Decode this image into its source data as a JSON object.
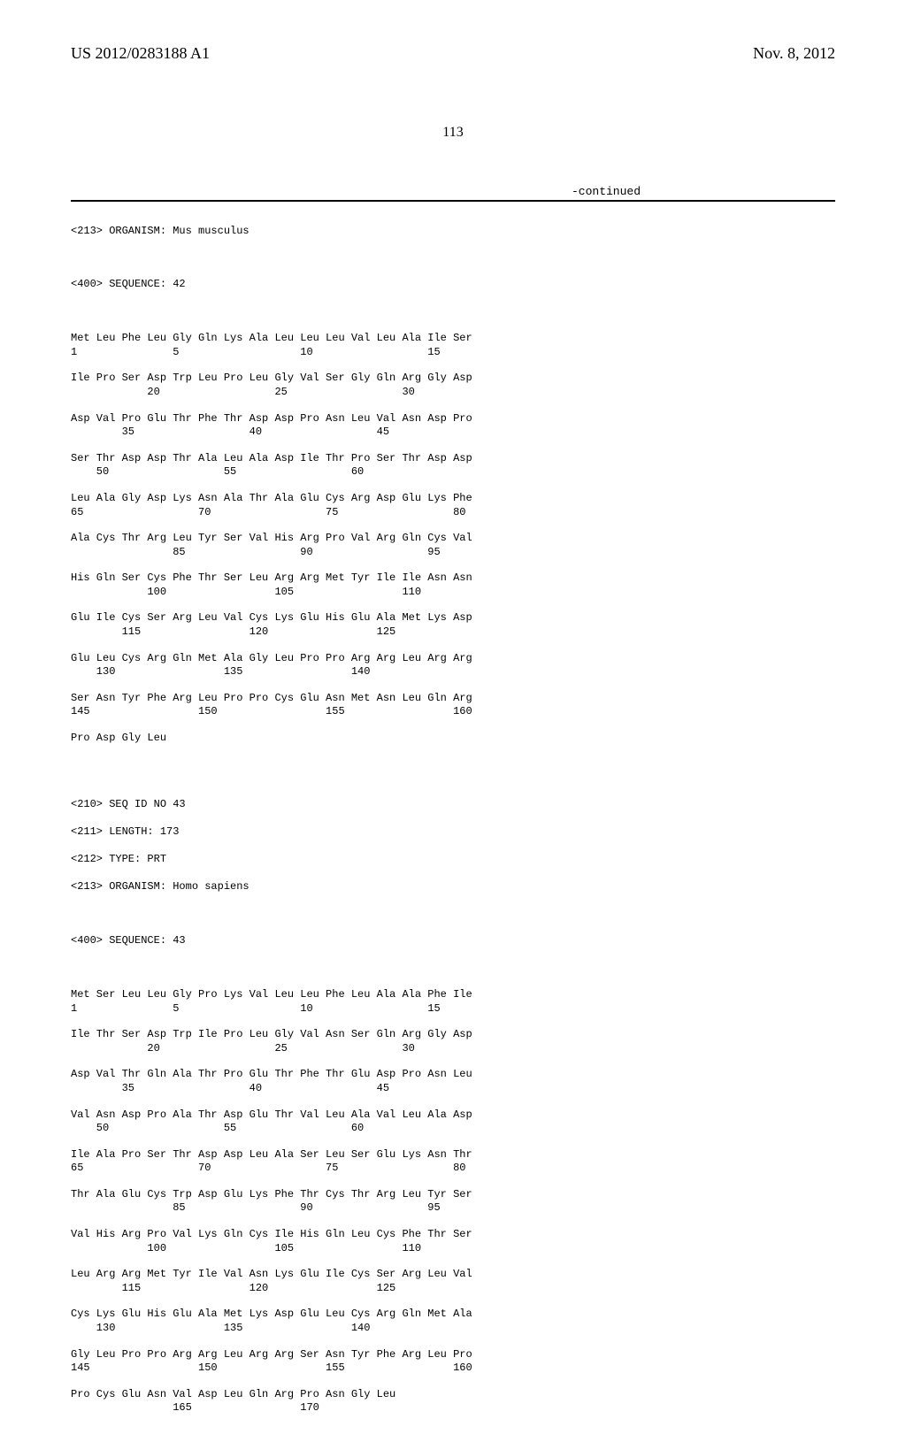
{
  "header": {
    "left": "US 2012/0283188 A1",
    "right": "Nov. 8, 2012"
  },
  "page_number": "113",
  "continued_label": "-continued",
  "seq42": {
    "organism": "<213> ORGANISM: Mus musculus",
    "sequence_header": "<400> SEQUENCE: 42",
    "rows": [
      {
        "aa": "Met Leu Phe Leu Gly Gln Lys Ala Leu Leu Leu Val Leu Ala Ile Ser",
        "nums": "1               5                   10                  15"
      },
      {
        "aa": "Ile Pro Ser Asp Trp Leu Pro Leu Gly Val Ser Gly Gln Arg Gly Asp",
        "nums": "            20                  25                  30"
      },
      {
        "aa": "Asp Val Pro Glu Thr Phe Thr Asp Asp Pro Asn Leu Val Asn Asp Pro",
        "nums": "        35                  40                  45"
      },
      {
        "aa": "Ser Thr Asp Asp Thr Ala Leu Ala Asp Ile Thr Pro Ser Thr Asp Asp",
        "nums": "    50                  55                  60"
      },
      {
        "aa": "Leu Ala Gly Asp Lys Asn Ala Thr Ala Glu Cys Arg Asp Glu Lys Phe",
        "nums": "65                  70                  75                  80"
      },
      {
        "aa": "Ala Cys Thr Arg Leu Tyr Ser Val His Arg Pro Val Arg Gln Cys Val",
        "nums": "                85                  90                  95"
      },
      {
        "aa": "His Gln Ser Cys Phe Thr Ser Leu Arg Arg Met Tyr Ile Ile Asn Asn",
        "nums": "            100                 105                 110"
      },
      {
        "aa": "Glu Ile Cys Ser Arg Leu Val Cys Lys Glu His Glu Ala Met Lys Asp",
        "nums": "        115                 120                 125"
      },
      {
        "aa": "Glu Leu Cys Arg Gln Met Ala Gly Leu Pro Pro Arg Arg Leu Arg Arg",
        "nums": "    130                 135                 140"
      },
      {
        "aa": "Ser Asn Tyr Phe Arg Leu Pro Pro Cys Glu Asn Met Asn Leu Gln Arg",
        "nums": "145                 150                 155                 160"
      },
      {
        "aa": "Pro Asp Gly Leu",
        "nums": ""
      }
    ]
  },
  "seq43": {
    "seq_id": "<210> SEQ ID NO 43",
    "length": "<211> LENGTH: 173",
    "type": "<212> TYPE: PRT",
    "organism": "<213> ORGANISM: Homo sapiens",
    "sequence_header": "<400> SEQUENCE: 43",
    "rows": [
      {
        "aa": "Met Ser Leu Leu Gly Pro Lys Val Leu Leu Phe Leu Ala Ala Phe Ile",
        "nums": "1               5                   10                  15"
      },
      {
        "aa": "Ile Thr Ser Asp Trp Ile Pro Leu Gly Val Asn Ser Gln Arg Gly Asp",
        "nums": "            20                  25                  30"
      },
      {
        "aa": "Asp Val Thr Gln Ala Thr Pro Glu Thr Phe Thr Glu Asp Pro Asn Leu",
        "nums": "        35                  40                  45"
      },
      {
        "aa": "Val Asn Asp Pro Ala Thr Asp Glu Thr Val Leu Ala Val Leu Ala Asp",
        "nums": "    50                  55                  60"
      },
      {
        "aa": "Ile Ala Pro Ser Thr Asp Asp Leu Ala Ser Leu Ser Glu Lys Asn Thr",
        "nums": "65                  70                  75                  80"
      },
      {
        "aa": "Thr Ala Glu Cys Trp Asp Glu Lys Phe Thr Cys Thr Arg Leu Tyr Ser",
        "nums": "                85                  90                  95"
      },
      {
        "aa": "Val His Arg Pro Val Lys Gln Cys Ile His Gln Leu Cys Phe Thr Ser",
        "nums": "            100                 105                 110"
      },
      {
        "aa": "Leu Arg Arg Met Tyr Ile Val Asn Lys Glu Ile Cys Ser Arg Leu Val",
        "nums": "        115                 120                 125"
      },
      {
        "aa": "Cys Lys Glu His Glu Ala Met Lys Asp Glu Leu Cys Arg Gln Met Ala",
        "nums": "    130                 135                 140"
      },
      {
        "aa": "Gly Leu Pro Pro Arg Arg Leu Arg Arg Ser Asn Tyr Phe Arg Leu Pro",
        "nums": "145                 150                 155                 160"
      },
      {
        "aa": "Pro Cys Glu Asn Val Asp Leu Gln Arg Pro Asn Gly Leu",
        "nums": "                165                 170"
      }
    ]
  }
}
